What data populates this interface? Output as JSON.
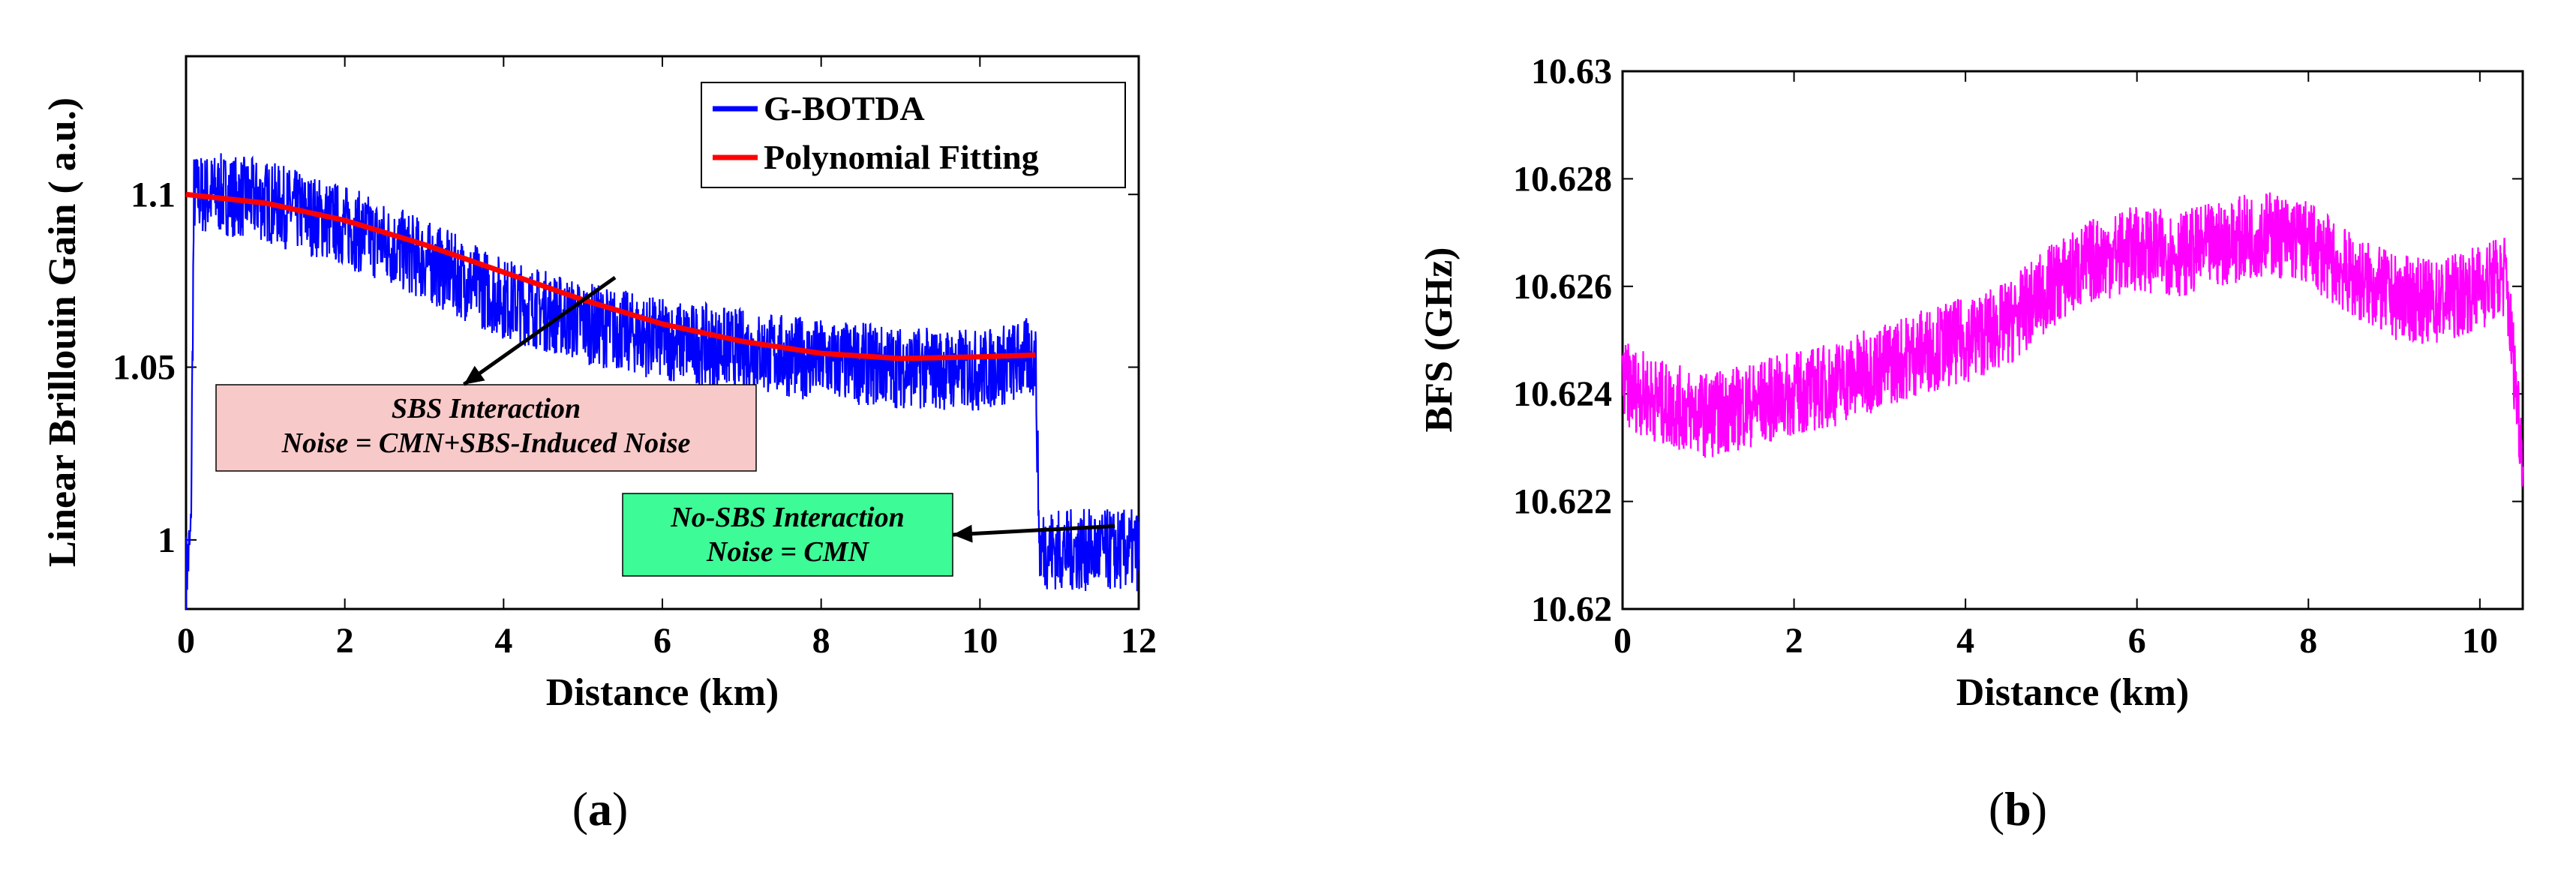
{
  "chart_data": [
    {
      "type": "line",
      "panel_label": "a",
      "xlabel": "Distance (km)",
      "ylabel": "Linear Brillouin Gain ( a.u.)",
      "xlim": [
        0,
        12
      ],
      "ylim": [
        0.98,
        1.14
      ],
      "xticks": [
        0,
        2,
        4,
        6,
        8,
        10,
        12
      ],
      "yticks": [
        1,
        1.05,
        1.1
      ],
      "xtick_labels": [
        "0",
        "2",
        "4",
        "6",
        "8",
        "10",
        "12"
      ],
      "ytick_labels": [
        "1",
        "1.05",
        "1.1"
      ],
      "series": [
        {
          "name": "G-BOTDA",
          "color": "#0000ff",
          "x": [
            0,
            0.06,
            0.1,
            0.5,
            1,
            2,
            3,
            4,
            5,
            6,
            7,
            8,
            9,
            10,
            10.7,
            10.75,
            11,
            11.5,
            12
          ],
          "values": [
            0.99,
            1.0,
            1.1,
            1.1,
            1.098,
            1.091,
            1.081,
            1.07,
            1.063,
            1.058,
            1.055,
            1.052,
            1.05,
            1.049,
            1.053,
            0.998,
            0.997,
            0.997,
            0.997
          ],
          "noise_amplitude": 0.012
        },
        {
          "name": "Polynomial Fitting",
          "color": "#ff0000",
          "x": [
            0,
            1,
            2,
            3,
            4,
            5,
            6,
            7,
            8,
            9,
            10,
            10.7
          ],
          "values": [
            1.1,
            1.0975,
            1.0925,
            1.0855,
            1.0775,
            1.0695,
            1.0625,
            1.0575,
            1.054,
            1.0525,
            1.053,
            1.0535
          ]
        }
      ],
      "annotations": [
        {
          "lines": [
            "SBS Interaction",
            "Noise = CMN+SBS-Induced Noise"
          ],
          "bg": "#f8c9c9",
          "arrow_to": [
            3.5,
            1.045
          ]
        },
        {
          "lines": [
            "No-SBS Interaction",
            "Noise = CMN"
          ],
          "bg": "#3dfb96",
          "arrow_to": [
            11.7,
            1.004
          ]
        }
      ]
    },
    {
      "type": "line",
      "panel_label": "b",
      "xlabel": "Distance (km)",
      "ylabel": "BFS (GHz)",
      "xlim": [
        0,
        10.5
      ],
      "ylim": [
        10.62,
        10.63
      ],
      "xticks": [
        0,
        2,
        4,
        6,
        8,
        10
      ],
      "yticks": [
        10.62,
        10.622,
        10.624,
        10.626,
        10.628,
        10.63
      ],
      "xtick_labels": [
        "0",
        "2",
        "4",
        "6",
        "8",
        "10"
      ],
      "ytick_labels": [
        "10.62",
        "10.622",
        "10.624",
        "10.626",
        "10.628",
        "10.63"
      ],
      "series": [
        {
          "name": "BFS",
          "color": "#ff00ff",
          "x": [
            0,
            0.5,
            1,
            1.5,
            2,
            2.5,
            3,
            3.5,
            4,
            4.5,
            5,
            5.5,
            6,
            6.5,
            7,
            7.5,
            8,
            8.5,
            9,
            9.5,
            10,
            10.3,
            10.5
          ],
          "values": [
            10.6242,
            10.6238,
            10.6236,
            10.6238,
            10.624,
            10.6242,
            10.6245,
            10.6248,
            10.625,
            10.6253,
            10.626,
            10.6265,
            10.6267,
            10.6266,
            10.6268,
            10.627,
            10.6268,
            10.6262,
            10.6258,
            10.6257,
            10.626,
            10.6262,
            10.6228
          ],
          "noise_amplitude": 0.0008
        }
      ]
    }
  ]
}
